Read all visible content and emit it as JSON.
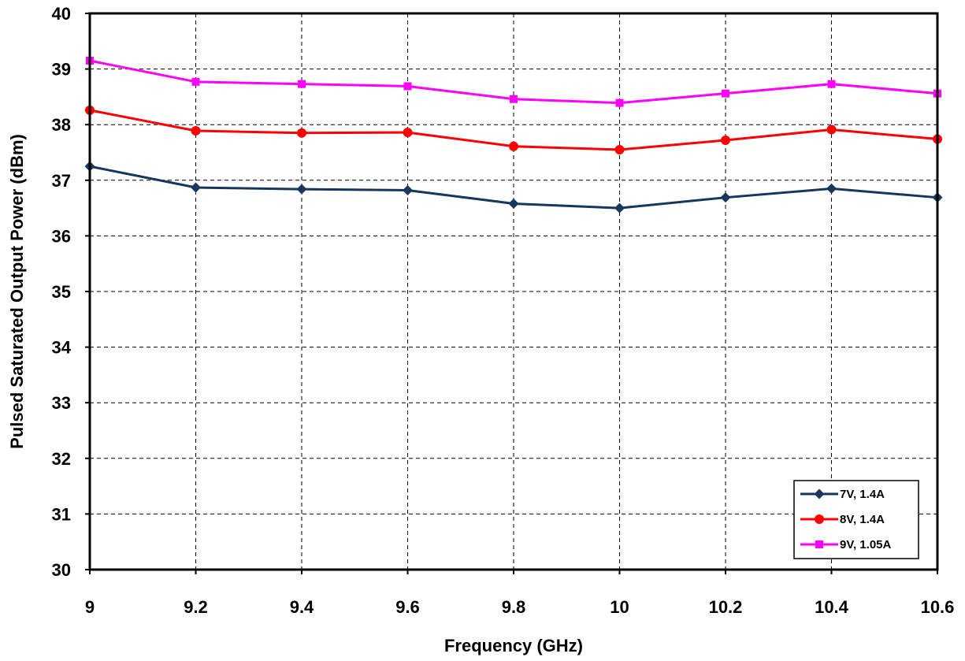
{
  "chart_data": {
    "type": "line",
    "xlabel": "Frequency (GHz)",
    "ylabel": "Pulsed Saturated Output Power (dBm)",
    "xlim": [
      9,
      10.6
    ],
    "ylim": [
      30,
      40
    ],
    "x_ticks": [
      "9",
      "9.2",
      "9.4",
      "9.6",
      "9.8",
      "10",
      "10.2",
      "10.4",
      "10.6"
    ],
    "y_ticks": [
      "30",
      "31",
      "32",
      "33",
      "34",
      "35",
      "36",
      "37",
      "38",
      "39",
      "40"
    ],
    "grid": true,
    "legend_position": "bottom-right",
    "x": [
      9,
      9.2,
      9.4,
      9.6,
      9.8,
      10,
      10.2,
      10.4,
      10.6
    ],
    "series": [
      {
        "name": "7V, 1.4A",
        "color": "#17375e",
        "marker": "diamond",
        "values": [
          37.25,
          36.87,
          36.84,
          36.82,
          36.58,
          36.5,
          36.69,
          36.85,
          36.69
        ]
      },
      {
        "name": "8V, 1.4A",
        "color": "#ff0000",
        "marker": "circle",
        "values": [
          38.26,
          37.89,
          37.85,
          37.86,
          37.61,
          37.55,
          37.72,
          37.91,
          37.74
        ]
      },
      {
        "name": "9V, 1.05A",
        "color": "#ff00ff",
        "marker": "square",
        "values": [
          39.15,
          38.77,
          38.73,
          38.69,
          38.46,
          38.39,
          38.56,
          38.73,
          38.56
        ]
      }
    ]
  }
}
